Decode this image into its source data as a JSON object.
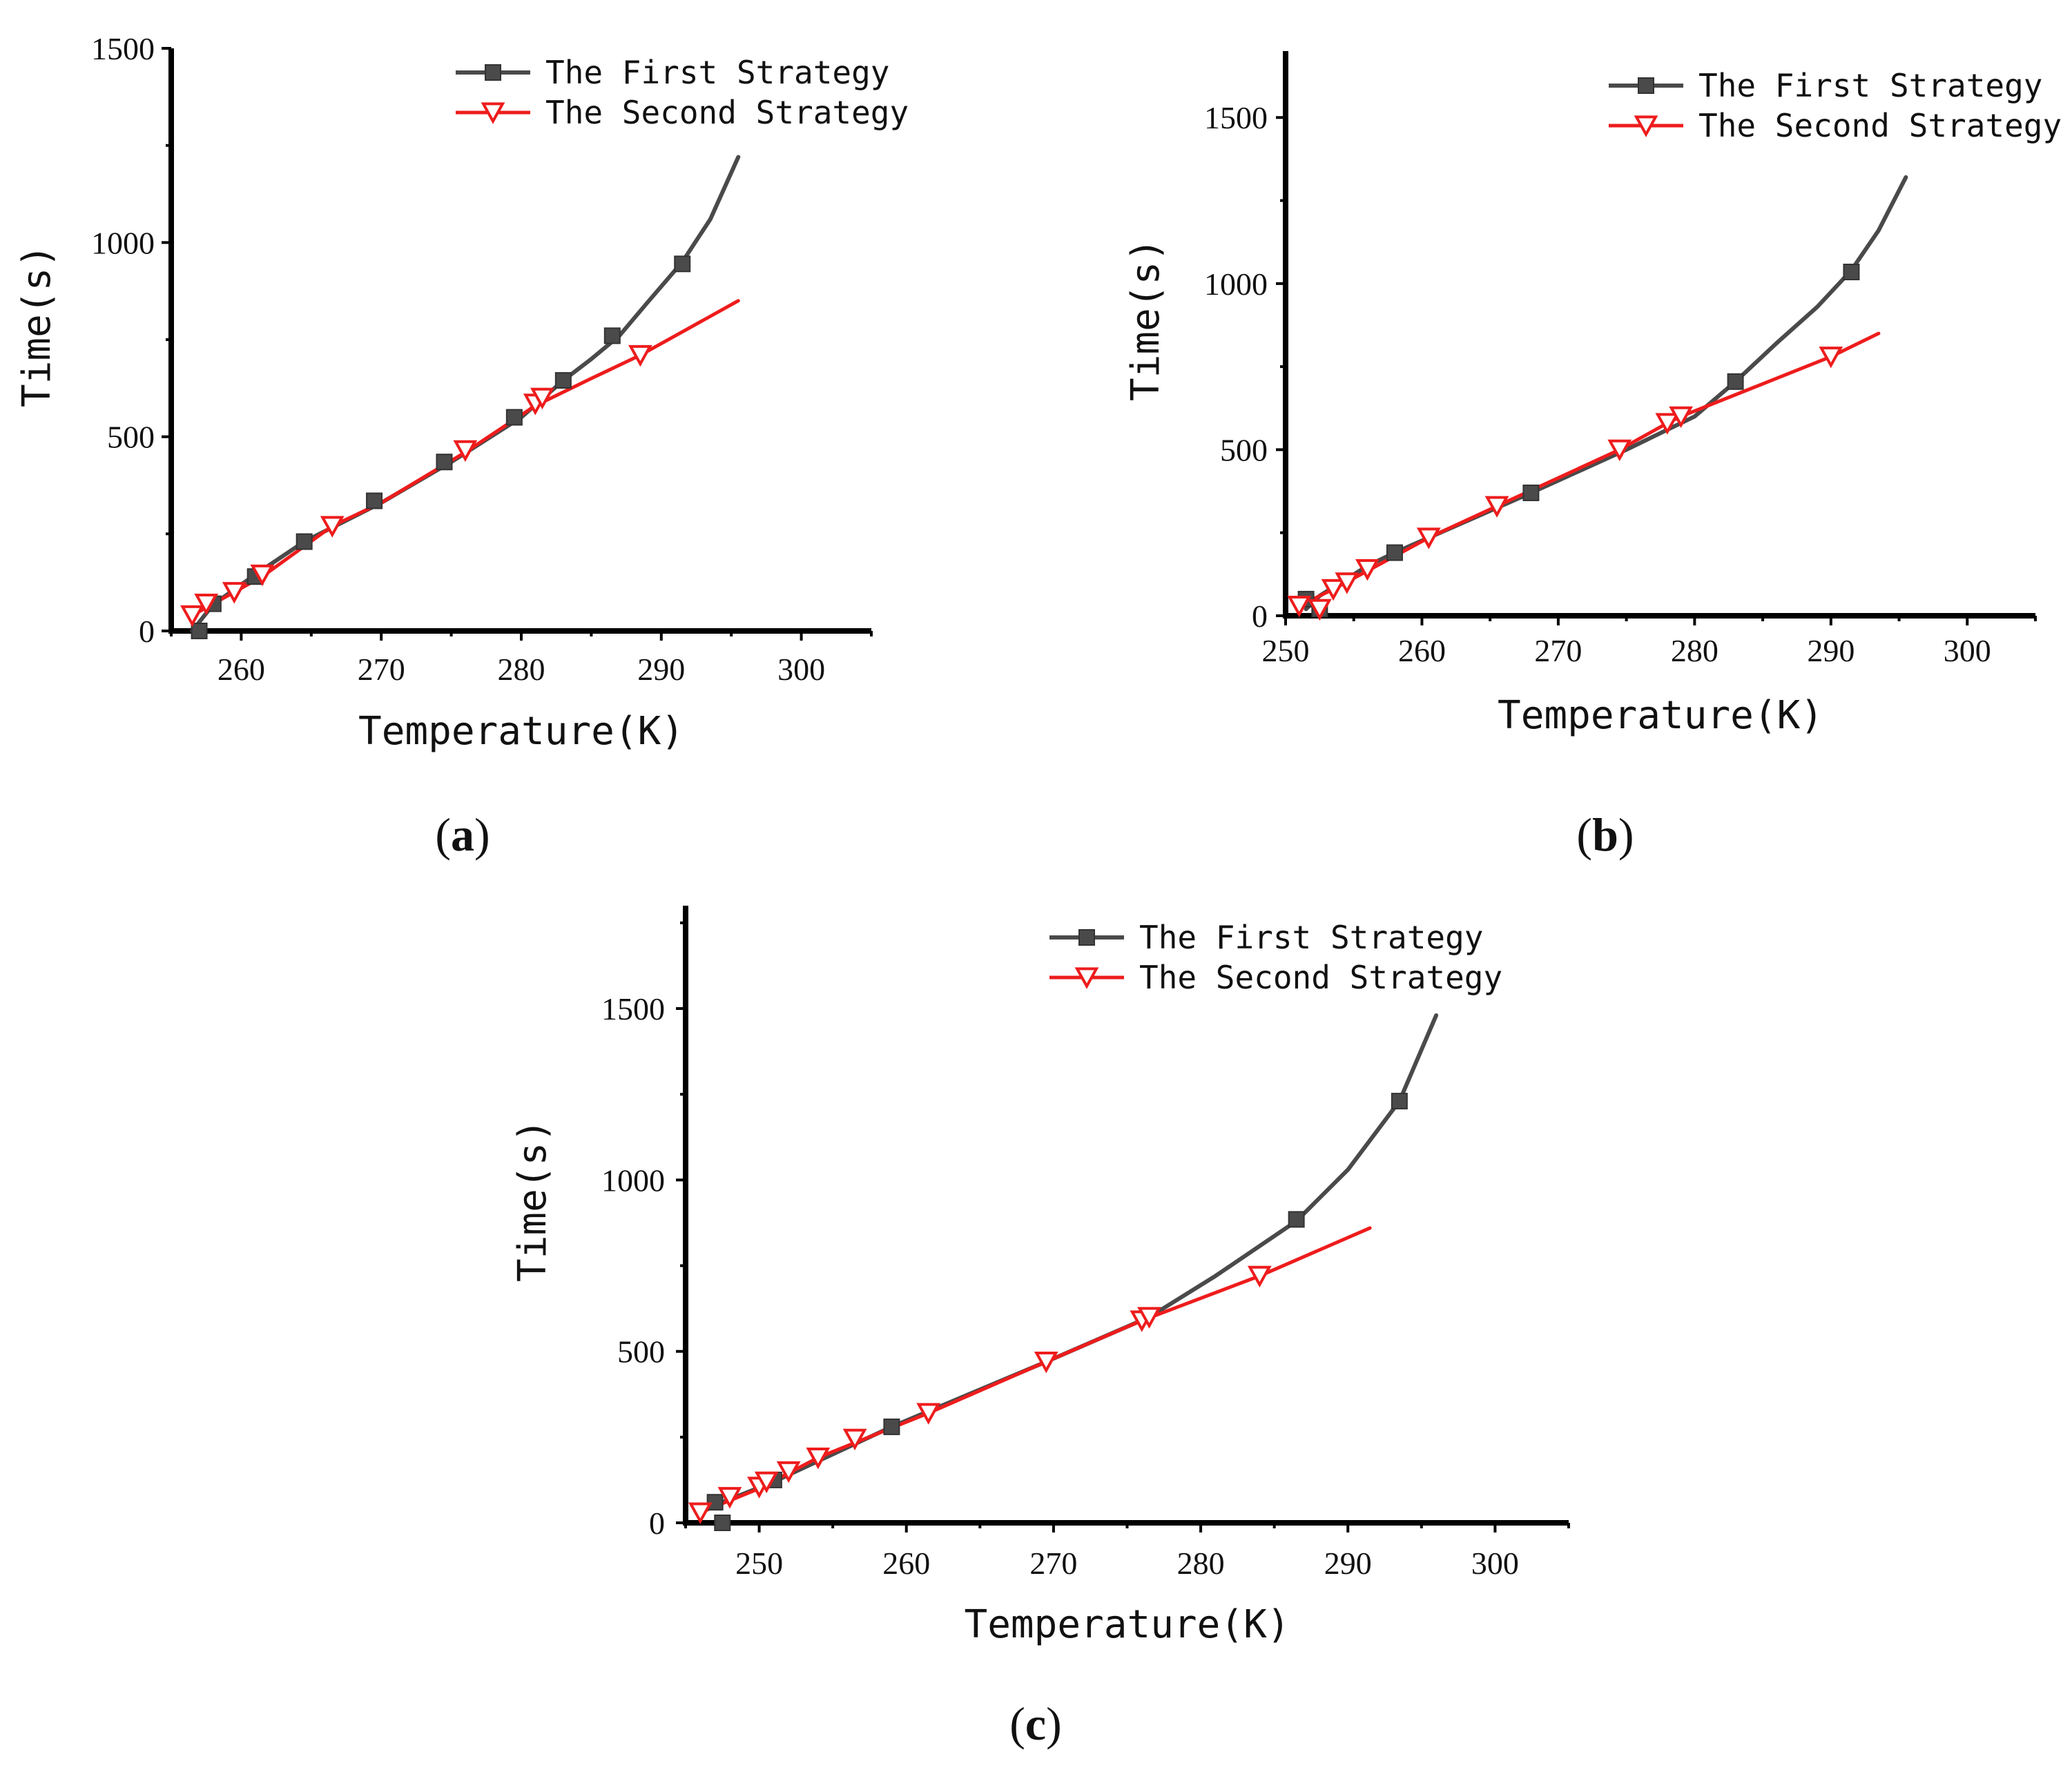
{
  "figure": {
    "legend": {
      "first": "The First Strategy",
      "second": "The Second Strategy"
    },
    "colors": {
      "first": "#4a4a4a",
      "second": "#ee1c1c",
      "axis": "#000000"
    }
  },
  "chart_data": [
    {
      "id": "a",
      "panel_label": "a",
      "type": "line",
      "xlabel": "Temperature(K)",
      "ylabel": "Time(s)",
      "xlim": [
        255,
        305
      ],
      "ylim": [
        0,
        1500
      ],
      "xticks": [
        260,
        270,
        280,
        290,
        300
      ],
      "yticks": [
        0,
        500,
        1000,
        1500
      ],
      "legend_position": "top-right",
      "series": [
        {
          "name": "The First Strategy",
          "line": [
            [
              256.5,
              0
            ],
            [
              258,
              68
            ],
            [
              261,
              145
            ],
            [
              264.5,
              230
            ],
            [
              270,
              330
            ],
            [
              275,
              435
            ],
            [
              280,
              550
            ],
            [
              283,
              645
            ],
            [
              285,
              700
            ],
            [
              287,
              760
            ],
            [
              289,
              845
            ],
            [
              291.5,
              950
            ],
            [
              293.5,
              1060
            ],
            [
              295.5,
              1220
            ]
          ],
          "markers": [
            [
              257,
              0
            ],
            [
              258,
              70
            ],
            [
              261,
              140
            ],
            [
              264.5,
              230
            ],
            [
              269.5,
              335
            ],
            [
              274.5,
              435
            ],
            [
              279.5,
              550
            ],
            [
              283,
              645
            ],
            [
              286.5,
              760
            ],
            [
              291.5,
              945
            ]
          ]
        },
        {
          "name": "The Second Strategy",
          "line": [
            [
              256.5,
              40
            ],
            [
              259,
              90
            ],
            [
              261.5,
              140
            ],
            [
              266.5,
              270
            ],
            [
              270,
              330
            ],
            [
              276,
              460
            ],
            [
              281,
              580
            ],
            [
              285,
              650
            ],
            [
              288.5,
              710
            ],
            [
              295.5,
              850
            ]
          ],
          "markers": [
            [
              256.5,
              40
            ],
            [
              257.5,
              70
            ],
            [
              259.5,
              100
            ],
            [
              261.5,
              145
            ],
            [
              266.5,
              270
            ],
            [
              276,
              465
            ],
            [
              281,
              585
            ],
            [
              281.5,
              600
            ],
            [
              288.5,
              710
            ]
          ]
        }
      ]
    },
    {
      "id": "b",
      "panel_label": "b",
      "type": "line",
      "xlabel": "Temperature(K)",
      "ylabel": "Time(s)",
      "xlim": [
        250,
        305
      ],
      "ylim": [
        0,
        1700
      ],
      "xticks": [
        250,
        260,
        270,
        280,
        290,
        300
      ],
      "yticks": [
        0,
        500,
        1000,
        1500
      ],
      "legend_position": "top-right",
      "series": [
        {
          "name": "The First Strategy",
          "line": [
            [
              251.5,
              20
            ],
            [
              252.5,
              60
            ],
            [
              256,
              150
            ],
            [
              258,
              190
            ],
            [
              268,
              370
            ],
            [
              275,
              500
            ],
            [
              280,
              600
            ],
            [
              283,
              705
            ],
            [
              286,
              820
            ],
            [
              289,
              930
            ],
            [
              291.5,
              1040
            ],
            [
              293.5,
              1160
            ],
            [
              295.5,
              1320
            ]
          ],
          "markers": [
            [
              251.5,
              50
            ],
            [
              252.5,
              20
            ],
            [
              258,
              190
            ],
            [
              268,
              370
            ],
            [
              283,
              705
            ],
            [
              291.5,
              1035
            ]
          ]
        },
        {
          "name": "The Second Strategy",
          "line": [
            [
              251,
              30
            ],
            [
              253.5,
              80
            ],
            [
              256,
              135
            ],
            [
              260.5,
              235
            ],
            [
              265.5,
              330
            ],
            [
              274.5,
              500
            ],
            [
              278,
              580
            ],
            [
              279,
              600
            ],
            [
              290,
              780
            ],
            [
              293.5,
              850
            ]
          ],
          "markers": [
            [
              251,
              30
            ],
            [
              252.5,
              20
            ],
            [
              253.5,
              80
            ],
            [
              254.5,
              100
            ],
            [
              256,
              140
            ],
            [
              260.5,
              235
            ],
            [
              265.5,
              330
            ],
            [
              274.5,
              500
            ],
            [
              278,
              580
            ],
            [
              279,
              600
            ],
            [
              290,
              780
            ]
          ]
        }
      ]
    },
    {
      "id": "c",
      "panel_label": "c",
      "type": "line",
      "xlabel": "Temperature(K)",
      "ylabel": "Time(s)",
      "xlim": [
        245,
        305
      ],
      "ylim": [
        0,
        1800
      ],
      "xticks": [
        250,
        260,
        270,
        280,
        290,
        300
      ],
      "yticks": [
        0,
        500,
        1000,
        1500
      ],
      "legend_position": "top-right",
      "series": [
        {
          "name": "The First Strategy",
          "line": [
            [
              246,
              30
            ],
            [
              247.5,
              60
            ],
            [
              251,
              120
            ],
            [
              259,
              280
            ],
            [
              269.5,
              470
            ],
            [
              276.5,
              600
            ],
            [
              281,
              720
            ],
            [
              286.5,
              880
            ],
            [
              290,
              1030
            ],
            [
              293.5,
              1230
            ],
            [
              296,
              1480
            ]
          ],
          "markers": [
            [
              247,
              60
            ],
            [
              247.5,
              0
            ],
            [
              251,
              125
            ],
            [
              259,
              280
            ],
            [
              286.5,
              885
            ],
            [
              293.5,
              1230
            ]
          ]
        },
        {
          "name": "The Second Strategy",
          "line": [
            [
              246,
              30
            ],
            [
              250,
              100
            ],
            [
              254,
              190
            ],
            [
              261.5,
              320
            ],
            [
              269.5,
              470
            ],
            [
              276,
              590
            ],
            [
              284,
              720
            ],
            [
              291.5,
              860
            ]
          ],
          "markers": [
            [
              246,
              30
            ],
            [
              248,
              75
            ],
            [
              250,
              105
            ],
            [
              250.5,
              120
            ],
            [
              252,
              150
            ],
            [
              254,
              190
            ],
            [
              256.5,
              245
            ],
            [
              261.5,
              320
            ],
            [
              269.5,
              470
            ],
            [
              276,
              590
            ],
            [
              276.5,
              600
            ],
            [
              284,
              720
            ]
          ]
        }
      ]
    }
  ]
}
